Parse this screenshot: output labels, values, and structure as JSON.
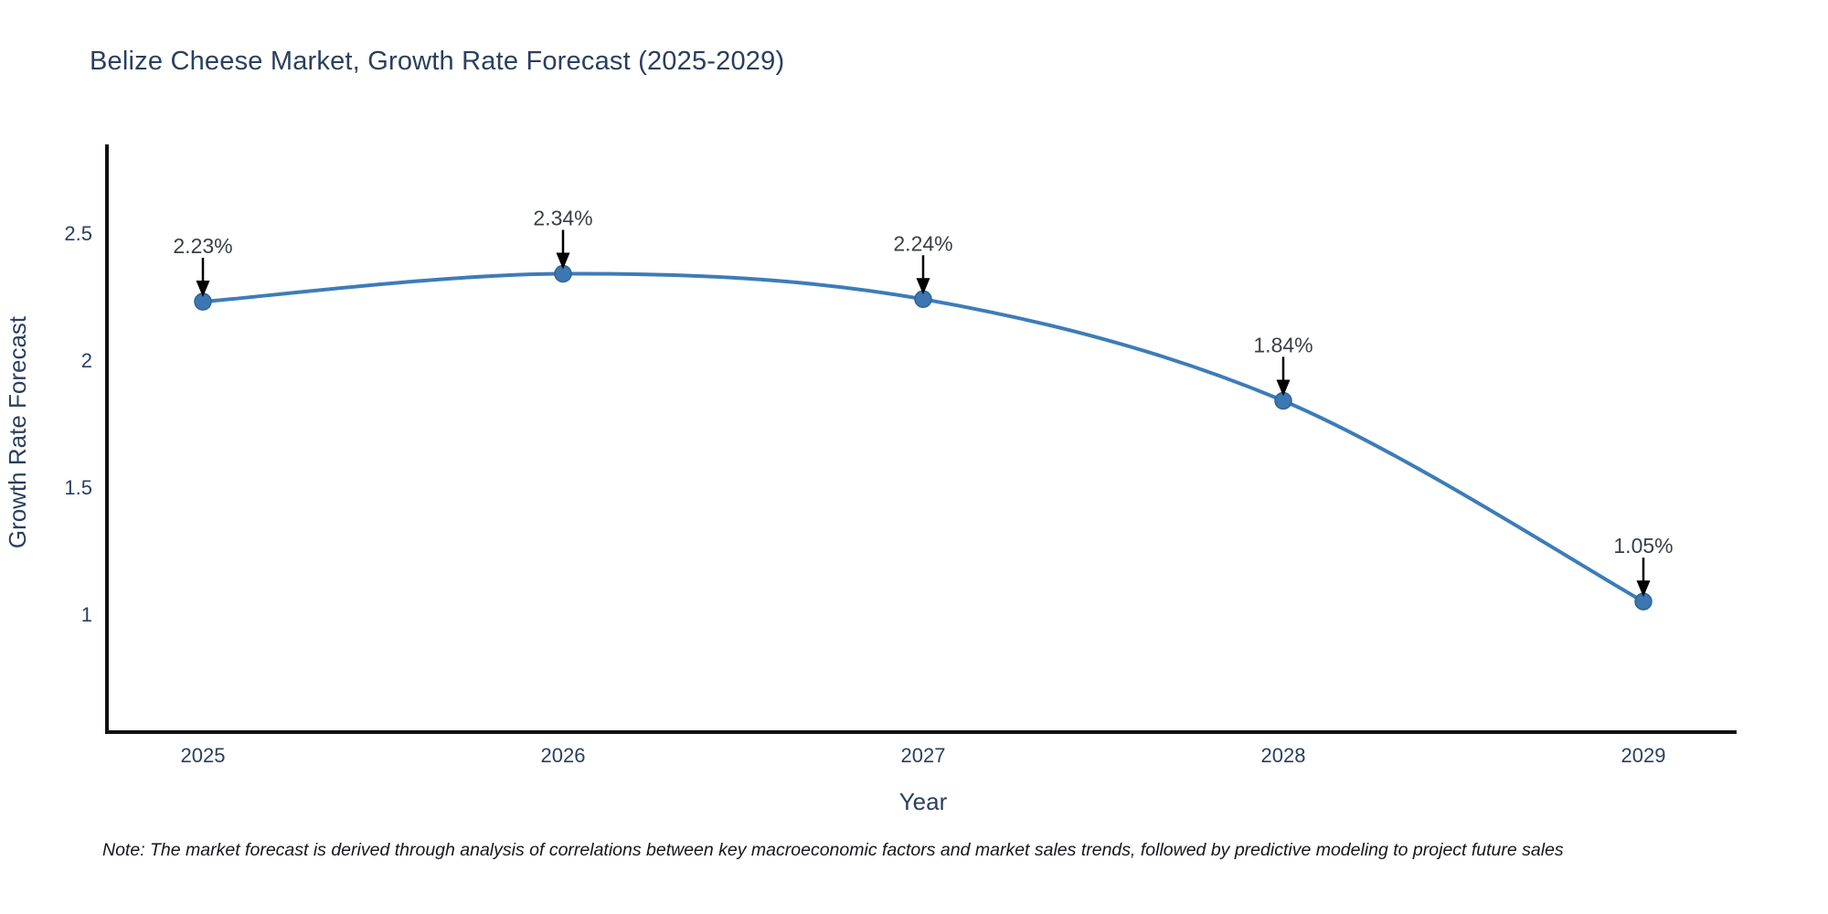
{
  "page": {
    "title": "Belize Cheese Market, Growth Rate Forecast (2025-2029)",
    "note": "Note: The market forecast is derived through analysis of correlations between key macroeconomic factors and market sales trends, followed by predictive modeling to project future sales"
  },
  "chart_data": {
    "type": "line",
    "title": "Belize Cheese Market, Growth Rate Forecast (2025-2029)",
    "xlabel": "Year",
    "ylabel": "Growth Rate Forecast",
    "categories": [
      "2025",
      "2026",
      "2027",
      "2028",
      "2029"
    ],
    "values": [
      2.23,
      2.34,
      2.24,
      1.84,
      1.05
    ],
    "point_labels": [
      "2.23%",
      "2.34%",
      "2.24%",
      "1.84%",
      "1.05%"
    ],
    "yticks": [
      "1",
      "1.5",
      "2",
      "2.5"
    ],
    "ytick_values": [
      1,
      1.5,
      2,
      2.5
    ],
    "ylim": [
      0.54,
      2.84
    ],
    "line_shape": "spline",
    "grid": false,
    "legend_position": "none",
    "annotation_arrows": true,
    "colors": {
      "line": "#3d7cb8",
      "marker_fill": "#3c77b1",
      "marker_stroke": "#2f6496",
      "arrow": "#000000",
      "axis_line": "#111111",
      "axis_text": "#2a3f5f",
      "point_label_text": "#3a3f47",
      "title_text": "#2a3f5f"
    }
  }
}
